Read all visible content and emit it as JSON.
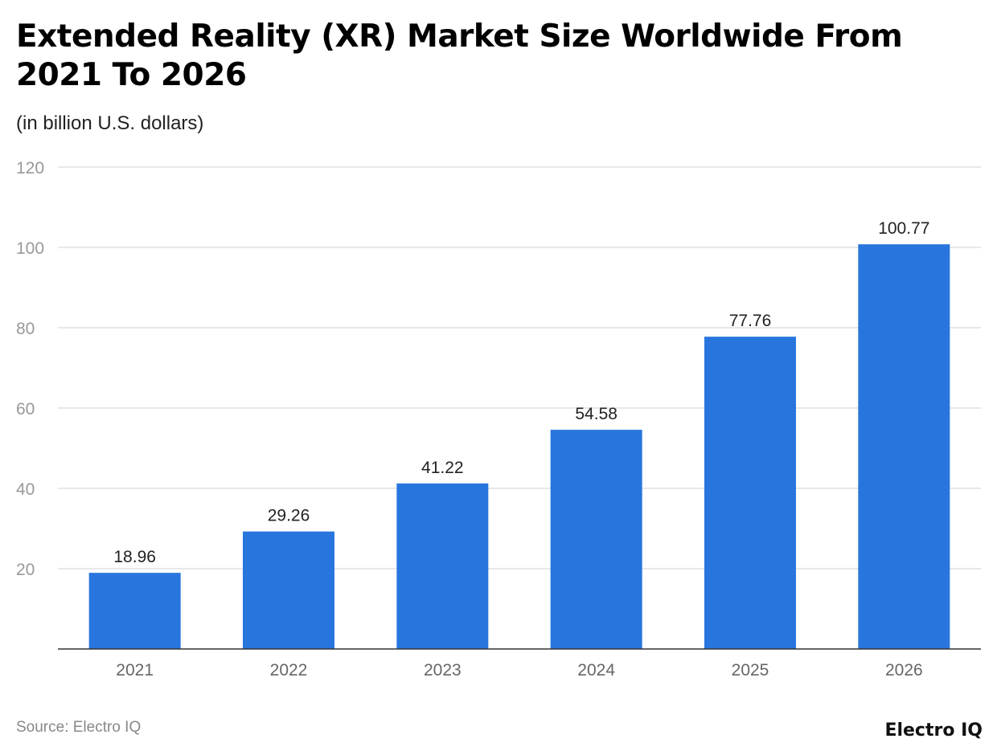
{
  "chart_data": {
    "type": "bar",
    "title": "Extended Reality (XR) Market Size Worldwide From 2021 To 2026",
    "subtitle": "(in billion U.S. dollars)",
    "categories": [
      "2021",
      "2022",
      "2023",
      "2024",
      "2025",
      "2026"
    ],
    "values": [
      18.96,
      29.26,
      41.22,
      54.58,
      77.76,
      100.77
    ],
    "data_labels": [
      "18.96",
      "29.26",
      "41.22",
      "54.58",
      "77.76",
      "100.77"
    ],
    "xlabel": "",
    "ylabel": "",
    "ylim": [
      0,
      120
    ],
    "yticks": [
      20,
      40,
      60,
      80,
      100,
      120
    ],
    "grid": true,
    "bar_color": "#2876dd"
  },
  "footer": {
    "source": "Source: Electro IQ",
    "logo": "Electro IQ"
  }
}
